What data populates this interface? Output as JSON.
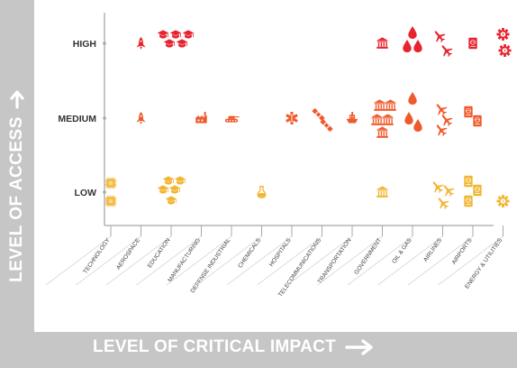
{
  "chart_data": {
    "type": "scatter",
    "ylabel": "LEVEL OF ACCESS",
    "xlabel": "LEVEL OF CRITICAL IMPACT",
    "y_levels": [
      "LOW",
      "MEDIUM",
      "HIGH"
    ],
    "categories": [
      "TECHNOLOGY",
      "AEROSPACE",
      "EDUCATION",
      "MANUFACTURING",
      "DEFENSE INDUSTRIAL",
      "CHEMICALS",
      "HOSPITALS",
      "TELECOMMUNICATIONS",
      "TRANSPORTATION",
      "GOVERNMENT",
      "OIL & GAS",
      "AIRLINES",
      "AIRPORTS",
      "ENERGY & UTILITIES"
    ],
    "points": [
      {
        "category": "TECHNOLOGY",
        "level": "LOW",
        "icon": "chip-icon",
        "count": 2
      },
      {
        "category": "AEROSPACE",
        "level": "HIGH",
        "icon": "rocket-icon",
        "count": 1
      },
      {
        "category": "AEROSPACE",
        "level": "MEDIUM",
        "icon": "rocket-icon",
        "count": 1
      },
      {
        "category": "EDUCATION",
        "level": "HIGH",
        "icon": "graduation-cap-icon",
        "count": 5
      },
      {
        "category": "EDUCATION",
        "level": "LOW",
        "icon": "graduation-cap-icon",
        "count": 5
      },
      {
        "category": "MANUFACTURING",
        "level": "MEDIUM",
        "icon": "factory-icon",
        "count": 1
      },
      {
        "category": "DEFENSE INDUSTRIAL",
        "level": "MEDIUM",
        "icon": "tank-icon",
        "count": 1
      },
      {
        "category": "CHEMICALS",
        "level": "LOW",
        "icon": "flask-icon",
        "count": 1
      },
      {
        "category": "HOSPITALS",
        "level": "MEDIUM",
        "icon": "medical-star-icon",
        "count": 1
      },
      {
        "category": "TELECOMMUNICATIONS",
        "level": "MEDIUM",
        "icon": "satellite-icon",
        "count": 2
      },
      {
        "category": "TRANSPORTATION",
        "level": "MEDIUM",
        "icon": "ship-icon",
        "count": 1
      },
      {
        "category": "GOVERNMENT",
        "level": "HIGH",
        "icon": "government-building-icon",
        "count": 1
      },
      {
        "category": "GOVERNMENT",
        "level": "MEDIUM",
        "icon": "government-building-icon",
        "count": 5
      },
      {
        "category": "GOVERNMENT",
        "level": "LOW",
        "icon": "government-building-icon",
        "count": 1
      },
      {
        "category": "OIL & GAS",
        "level": "HIGH",
        "icon": "oil-drop-icon",
        "count": 3
      },
      {
        "category": "OIL & GAS",
        "level": "MEDIUM",
        "icon": "oil-drop-icon",
        "count": 3
      },
      {
        "category": "AIRLINES",
        "level": "HIGH",
        "icon": "airplane-icon",
        "count": 2
      },
      {
        "category": "AIRLINES",
        "level": "MEDIUM",
        "icon": "airplane-icon",
        "count": 3
      },
      {
        "category": "AIRLINES",
        "level": "LOW",
        "icon": "airplane-icon",
        "count": 3
      },
      {
        "category": "AIRPORTS",
        "level": "HIGH",
        "icon": "passport-icon",
        "count": 1
      },
      {
        "category": "AIRPORTS",
        "level": "MEDIUM",
        "icon": "passport-icon",
        "count": 2
      },
      {
        "category": "AIRPORTS",
        "level": "LOW",
        "icon": "passport-icon",
        "count": 3
      },
      {
        "category": "ENERGY & UTILITIES",
        "level": "HIGH",
        "icon": "energy-gear-icon",
        "count": 2
      },
      {
        "category": "ENERGY & UTILITIES",
        "level": "LOW",
        "icon": "energy-gear-icon",
        "count": 1
      }
    ],
    "level_colors": {
      "HIGH": "#e8232e",
      "MEDIUM": "#ef5a2c",
      "LOW": "#f2b634"
    },
    "axis_color": "#a8a8a8",
    "grid": false,
    "legend": "none"
  }
}
